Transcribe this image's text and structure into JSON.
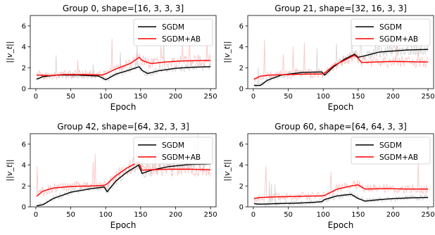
{
  "chart_data": [
    {
      "type": "line",
      "title": "Group 0, shape=[16, 3, 3, 3]",
      "xlabel": "Epoch",
      "ylabel": "||v_t||",
      "xlim": [
        -8,
        258
      ],
      "ylim": [
        0,
        7
      ],
      "xticks": [
        0,
        50,
        100,
        150,
        200,
        250
      ],
      "yticks": [
        0,
        2,
        4,
        6
      ],
      "legend": "top-right",
      "grid": false,
      "series": [
        {
          "name": "SGDM",
          "color": "#000000",
          "noise": 0.35,
          "noise_color": "#c8c8c8",
          "points": [
            [
              1,
              0.9
            ],
            [
              10,
              1.15
            ],
            [
              30,
              1.3
            ],
            [
              60,
              1.3
            ],
            [
              90,
              1.2
            ],
            [
              100,
              0.85
            ],
            [
              115,
              1.4
            ],
            [
              130,
              1.7
            ],
            [
              148,
              2.1
            ],
            [
              152,
              1.75
            ],
            [
              160,
              1.45
            ],
            [
              175,
              1.7
            ],
            [
              200,
              1.95
            ],
            [
              225,
              2.05
            ],
            [
              248,
              2.1
            ]
          ]
        },
        {
          "name": "SGDM+AB",
          "color": "#ff0000",
          "noise": 0.45,
          "noise_color": "#f7b5b5",
          "points": [
            [
              1,
              1.3
            ],
            [
              20,
              1.25
            ],
            [
              40,
              1.35
            ],
            [
              70,
              1.35
            ],
            [
              95,
              1.3
            ],
            [
              101,
              1.45
            ],
            [
              115,
              1.9
            ],
            [
              135,
              2.4
            ],
            [
              148,
              3.0
            ],
            [
              152,
              2.7
            ],
            [
              165,
              2.4
            ],
            [
              185,
              2.55
            ],
            [
              210,
              2.65
            ],
            [
              248,
              2.7
            ]
          ]
        }
      ]
    },
    {
      "type": "line",
      "title": "Group 21, shape=[32, 16, 3, 3]",
      "xlabel": "Epoch",
      "ylabel": "||v_t||",
      "xlim": [
        -8,
        258
      ],
      "ylim": [
        0,
        7
      ],
      "xticks": [
        0,
        50,
        100,
        150,
        200,
        250
      ],
      "yticks": [
        0,
        2,
        4,
        6
      ],
      "legend": "top-right",
      "grid": false,
      "series": [
        {
          "name": "SGDM",
          "color": "#000000",
          "noise": 0.35,
          "noise_color": "#c8c8c8",
          "points": [
            [
              1,
              0.3
            ],
            [
              10,
              0.3
            ],
            [
              20,
              0.8
            ],
            [
              40,
              1.3
            ],
            [
              70,
              1.55
            ],
            [
              98,
              1.6
            ],
            [
              102,
              1.3
            ],
            [
              115,
              2.1
            ],
            [
              130,
              2.8
            ],
            [
              145,
              3.3
            ],
            [
              150,
              3.0
            ],
            [
              160,
              3.15
            ],
            [
              180,
              3.5
            ],
            [
              200,
              3.6
            ],
            [
              220,
              3.7
            ],
            [
              248,
              3.75
            ]
          ]
        },
        {
          "name": "SGDM+AB",
          "color": "#ff0000",
          "noise": 0.45,
          "noise_color": "#f7b5b5",
          "points": [
            [
              1,
              0.9
            ],
            [
              10,
              1.2
            ],
            [
              25,
              1.3
            ],
            [
              50,
              1.35
            ],
            [
              80,
              1.4
            ],
            [
              98,
              1.4
            ],
            [
              102,
              1.5
            ],
            [
              115,
              2.2
            ],
            [
              130,
              2.7
            ],
            [
              145,
              3.2
            ],
            [
              150,
              2.9
            ],
            [
              155,
              2.5
            ],
            [
              175,
              2.55
            ],
            [
              200,
              2.6
            ],
            [
              248,
              2.55
            ]
          ]
        }
      ]
    },
    {
      "type": "line",
      "title": "Group 42, shape=[64, 32, 3, 3]",
      "xlabel": "Epoch",
      "ylabel": "||v_t||",
      "xlim": [
        -8,
        258
      ],
      "ylim": [
        0,
        7
      ],
      "xticks": [
        0,
        50,
        100,
        150,
        200,
        250
      ],
      "yticks": [
        0,
        2,
        4,
        6
      ],
      "legend": "top-right",
      "grid": false,
      "series": [
        {
          "name": "SGDM",
          "color": "#000000",
          "noise": 0.35,
          "noise_color": "#c8c8c8",
          "points": [
            [
              1,
              0.1
            ],
            [
              10,
              0.2
            ],
            [
              25,
              0.8
            ],
            [
              50,
              1.4
            ],
            [
              80,
              1.75
            ],
            [
              98,
              1.9
            ],
            [
              102,
              1.45
            ],
            [
              115,
              2.5
            ],
            [
              130,
              3.3
            ],
            [
              147,
              4.0
            ],
            [
              152,
              3.2
            ],
            [
              165,
              3.5
            ],
            [
              190,
              3.85
            ],
            [
              220,
              4.05
            ],
            [
              248,
              4.1
            ]
          ]
        },
        {
          "name": "SGDM+AB",
          "color": "#ff0000",
          "noise": 0.45,
          "noise_color": "#f7b5b5",
          "points": [
            [
              1,
              1.0
            ],
            [
              10,
              1.5
            ],
            [
              25,
              1.8
            ],
            [
              50,
              1.95
            ],
            [
              80,
              2.0
            ],
            [
              98,
              2.05
            ],
            [
              102,
              2.2
            ],
            [
              115,
              3.0
            ],
            [
              130,
              3.7
            ],
            [
              147,
              4.3
            ],
            [
              152,
              3.5
            ],
            [
              165,
              3.55
            ],
            [
              190,
              3.6
            ],
            [
              220,
              3.6
            ],
            [
              248,
              3.55
            ]
          ]
        }
      ]
    },
    {
      "type": "line",
      "title": "Group 60, shape=[64, 64, 3, 3]",
      "xlabel": "Epoch",
      "ylabel": "||v_t||",
      "xlim": [
        -8,
        258
      ],
      "ylim": [
        0,
        7
      ],
      "xticks": [
        0,
        50,
        100,
        150,
        200,
        250
      ],
      "yticks": [
        0,
        2,
        4,
        6
      ],
      "legend": "top-right",
      "grid": false,
      "series": [
        {
          "name": "SGDM",
          "color": "#000000",
          "noise": 0.35,
          "noise_color": "#c8c8c8",
          "points": [
            [
              1,
              0.3
            ],
            [
              10,
              0.25
            ],
            [
              30,
              0.3
            ],
            [
              60,
              0.35
            ],
            [
              90,
              0.45
            ],
            [
              98,
              0.5
            ],
            [
              102,
              0.7
            ],
            [
              120,
              1.05
            ],
            [
              140,
              1.2
            ],
            [
              150,
              0.8
            ],
            [
              160,
              0.55
            ],
            [
              190,
              0.75
            ],
            [
              220,
              0.85
            ],
            [
              248,
              0.9
            ]
          ]
        },
        {
          "name": "SGDM+AB",
          "color": "#ff0000",
          "noise": 0.45,
          "noise_color": "#f7b5b5",
          "points": [
            [
              1,
              0.8
            ],
            [
              10,
              0.9
            ],
            [
              30,
              0.95
            ],
            [
              60,
              1.0
            ],
            [
              98,
              1.05
            ],
            [
              102,
              1.1
            ],
            [
              120,
              1.7
            ],
            [
              140,
              2.0
            ],
            [
              150,
              2.1
            ],
            [
              160,
              1.7
            ],
            [
              190,
              1.75
            ],
            [
              220,
              1.7
            ],
            [
              248,
              1.7
            ]
          ]
        }
      ]
    }
  ]
}
